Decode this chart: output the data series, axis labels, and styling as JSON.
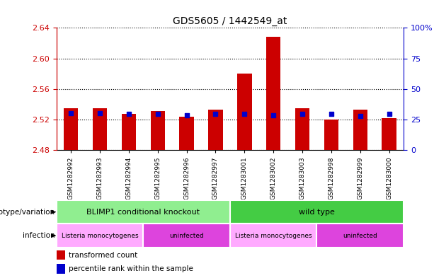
{
  "title": "GDS5605 / 1442549_at",
  "samples": [
    "GSM1282992",
    "GSM1282993",
    "GSM1282994",
    "GSM1282995",
    "GSM1282996",
    "GSM1282997",
    "GSM1283001",
    "GSM1283002",
    "GSM1283003",
    "GSM1282998",
    "GSM1282999",
    "GSM1283000"
  ],
  "bar_tops": [
    2.535,
    2.535,
    2.527,
    2.531,
    2.524,
    2.533,
    2.58,
    2.628,
    2.535,
    2.52,
    2.533,
    2.522
  ],
  "blue_values": [
    2.528,
    2.528,
    2.527,
    2.527,
    2.526,
    2.527,
    2.527,
    2.526,
    2.527,
    2.527,
    2.525,
    2.527
  ],
  "bar_bottom": 2.48,
  "ylim_left": [
    2.48,
    2.64
  ],
  "yticks_left": [
    2.48,
    2.52,
    2.56,
    2.6,
    2.64
  ],
  "ylim_right": [
    0,
    100
  ],
  "yticks_right": [
    0,
    25,
    50,
    75,
    100
  ],
  "ytick_labels_right": [
    "0",
    "25",
    "50",
    "75",
    "100%"
  ],
  "bar_color": "#cc0000",
  "blue_color": "#0000cc",
  "left_axis_color": "#cc0000",
  "right_axis_color": "#0000cc",
  "genotype_groups": [
    {
      "label": "BLIMP1 conditional knockout",
      "start": 0,
      "end": 6,
      "color": "#90ee90"
    },
    {
      "label": "wild type",
      "start": 6,
      "end": 12,
      "color": "#44cc44"
    }
  ],
  "infection_groups": [
    {
      "label": "Listeria monocytogenes",
      "start": 0,
      "end": 3,
      "color": "#ffaaff"
    },
    {
      "label": "uninfected",
      "start": 3,
      "end": 6,
      "color": "#dd44dd"
    },
    {
      "label": "Listeria monocytogenes",
      "start": 6,
      "end": 9,
      "color": "#ffaaff"
    },
    {
      "label": "uninfected",
      "start": 9,
      "end": 12,
      "color": "#dd44dd"
    }
  ],
  "legend_red_label": "transformed count",
  "legend_blue_label": "percentile rank within the sample",
  "genotype_row_label": "genotype/variation",
  "infection_row_label": "infection",
  "xticklabel_bg": "#d3d3d3"
}
